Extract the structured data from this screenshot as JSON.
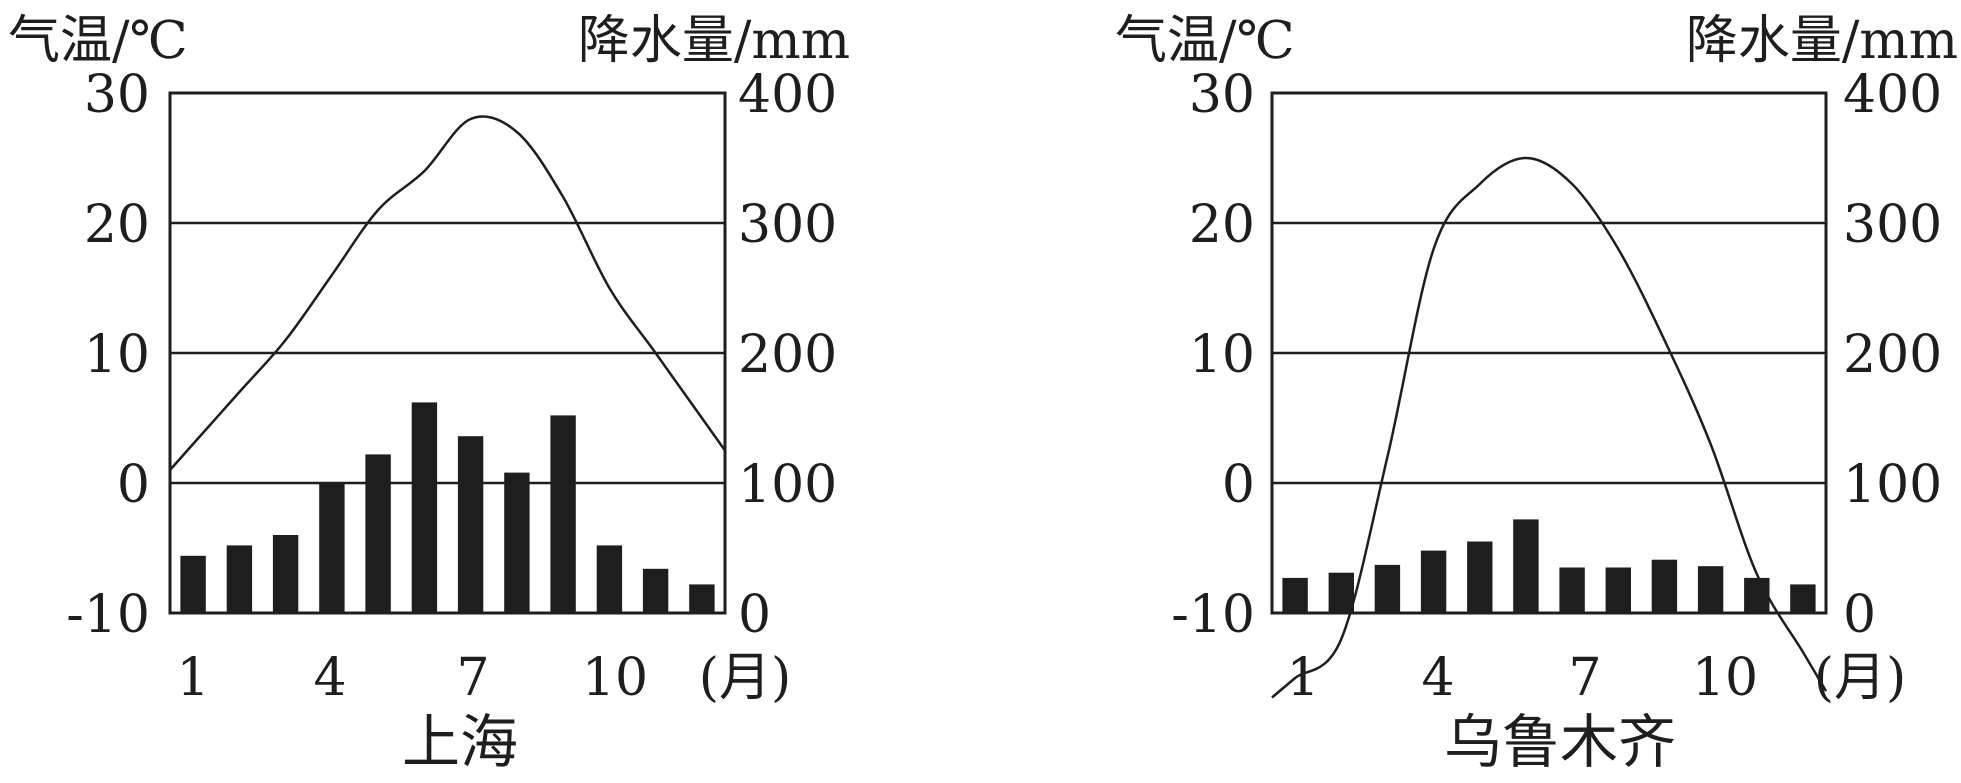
{
  "chart_data": [
    {
      "type": "bar+line",
      "title": "上海",
      "ylabel_left": "气温/℃",
      "ylabel_right": "降水量/mm",
      "x_ticks": [
        "1",
        "4",
        "7",
        "10"
      ],
      "x_unit": "(月)",
      "y_left_ticks": [
        "30",
        "20",
        "10",
        "0",
        "-10"
      ],
      "y_right_ticks": [
        "400",
        "300",
        "200",
        "100",
        "0"
      ],
      "y_left_range": [
        -10,
        30
      ],
      "y_right_range": [
        0,
        400
      ],
      "grid": "horizontal",
      "x": [
        1,
        2,
        3,
        4,
        5,
        6,
        7,
        8,
        9,
        10,
        11,
        12
      ],
      "series": [
        {
          "kind": "bar",
          "axis": "right",
          "values": [
            44,
            52,
            60,
            100,
            122,
            162,
            136,
            108,
            152,
            52,
            34,
            22
          ]
        },
        {
          "kind": "line",
          "axis": "left",
          "values": [
            3,
            7,
            11,
            16,
            21,
            24,
            28,
            27,
            22,
            15,
            10,
            5
          ]
        }
      ]
    },
    {
      "type": "bar+line",
      "title": "乌鲁木齐",
      "ylabel_left": "气温/℃",
      "ylabel_right": "降水量/mm",
      "x_ticks": [
        "1",
        "4",
        "7",
        "10"
      ],
      "x_unit": "(月)",
      "y_left_ticks": [
        "30",
        "20",
        "10",
        "0",
        "-10"
      ],
      "y_right_ticks": [
        "400",
        "300",
        "200",
        "100",
        "0"
      ],
      "y_left_range": [
        -10,
        30
      ],
      "y_right_range": [
        0,
        400
      ],
      "grid": "horizontal",
      "x": [
        1,
        2,
        3,
        4,
        5,
        6,
        7,
        8,
        9,
        10,
        11,
        12
      ],
      "series": [
        {
          "kind": "bar",
          "axis": "right",
          "values": [
            27,
            31,
            37,
            48,
            55,
            72,
            35,
            35,
            41,
            36,
            27,
            22
          ]
        },
        {
          "kind": "line",
          "axis": "left",
          "values": [
            -15,
            -12,
            2,
            18,
            23,
            25,
            23,
            18,
            11,
            3,
            -7,
            -13
          ]
        }
      ]
    }
  ]
}
